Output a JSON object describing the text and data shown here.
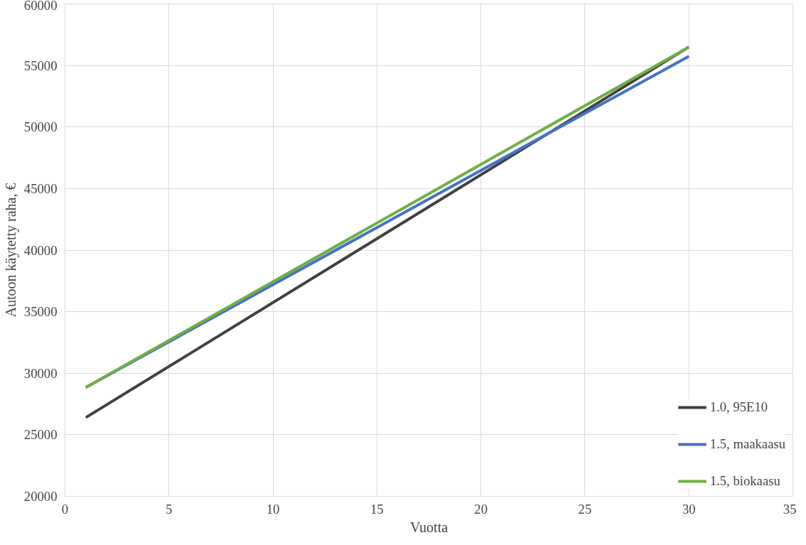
{
  "chart_data": {
    "type": "line",
    "xlabel": "Vuotta",
    "ylabel": "Autoon käytetty raha, €",
    "xlim": [
      0,
      35
    ],
    "xticks": [
      0,
      5,
      10,
      15,
      20,
      25,
      30,
      35
    ],
    "ylim": [
      20000,
      60000
    ],
    "yticks": [
      20000,
      25000,
      30000,
      35000,
      40000,
      45000,
      50000,
      55000,
      60000
    ],
    "grid": true,
    "legend": "bottom right",
    "marker": "none",
    "line_style": "solid",
    "x": [
      1,
      30
    ],
    "series": [
      {
        "name": "1.0, 95E10",
        "color": "#404040",
        "values": [
          26400,
          56500
        ]
      },
      {
        "name": "1.5, maakaasu",
        "color": "#4472c4",
        "values": [
          28850,
          55750
        ]
      },
      {
        "name": "1.5, biokaasu",
        "color": "#70ad47",
        "values": [
          28850,
          56500
        ]
      }
    ]
  }
}
